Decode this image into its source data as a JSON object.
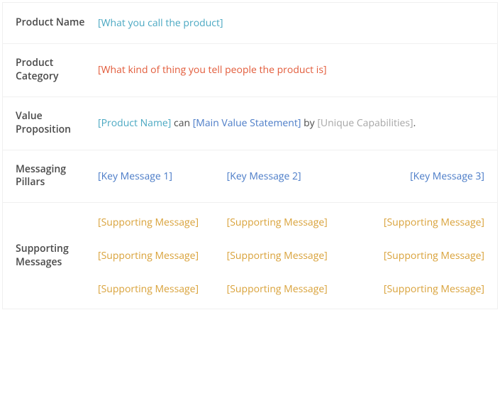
{
  "rows": {
    "product_name": {
      "label": "Product Name",
      "value": "[What you call the product]",
      "value_color": "#4aa8c2"
    },
    "product_category": {
      "label": "Product Category",
      "value": "[What kind of thing you tell people the product is]",
      "value_color": "#e25b3a"
    },
    "value_proposition": {
      "label": "Value Proposition",
      "parts": {
        "p1": "[Product Name]",
        "sep1": " can ",
        "p2": "[Main Value Statement]",
        "sep2": " by ",
        "p3": "[Unique Capabilities]",
        "tail": "."
      },
      "colors": {
        "p1": "#4aa8c2",
        "p2": "#4a7bc7",
        "p3": "#a6a6a6",
        "sep": "#4a4a4a"
      }
    },
    "messaging_pillars": {
      "label": "Messaging Pillars",
      "items": [
        "[Key Message 1]",
        "[Key Message 2]",
        "[Key Message 3]"
      ],
      "item_color": "#4a7bc7"
    },
    "supporting_messages": {
      "label": "Supporting Messages",
      "item_color": "#d9a23a",
      "grid": [
        [
          "[Supporting Message]",
          "[Supporting Message]",
          "[Supporting Message]"
        ],
        [
          "[Supporting Message]",
          "[Supporting Message]",
          "[Supporting Message]"
        ],
        [
          "[Supporting Message]",
          "[Supporting Message]",
          "[Supporting Message]"
        ]
      ]
    }
  },
  "style": {
    "border_color": "#f0f0f0",
    "label_color": "#4a4a4a",
    "font_size": 14,
    "label_font_weight": 600
  }
}
